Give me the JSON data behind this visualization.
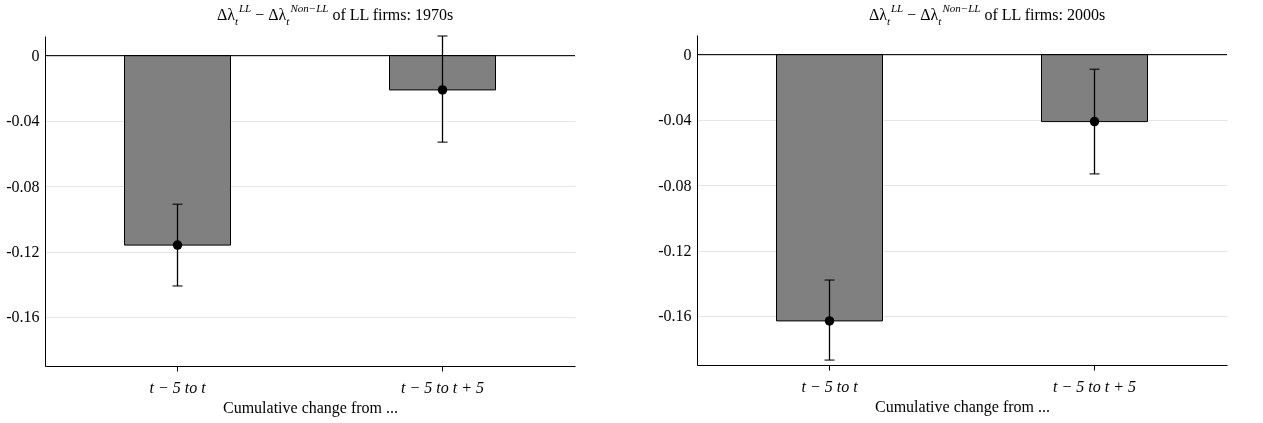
{
  "chart_data": [
    {
      "type": "bar",
      "title": "Δλ$_{t}$$^{LL}$ − Δλ$_{t}$$^{Non−LL}$ of LL firms: 1970s",
      "xlabel": "Cumulative change from ...",
      "categories": [
        "t − 5  to  t",
        "t − 5  to  t + 5"
      ],
      "series": [
        {
          "color": "#808080",
          "values": [
            -0.116,
            -0.021
          ]
        },
        {
          "type": "scatter",
          "color": "#000000",
          "x": [
            "t − 5  to  t",
            "t − 5  to  t + 5"
          ],
          "values": [
            -0.116,
            -0.021
          ],
          "errors": [
            [
              -0.141,
              -0.091
            ],
            [
              -0.053,
              0.012
            ]
          ]
        }
      ],
      "marker": "circle",
      "ylim": [
        -0.19,
        0.012
      ],
      "yticks": [
        -0.16,
        -0.12,
        -0.08,
        -0.04,
        0
      ],
      "grid": "y",
      "ref_lines": [
        {
          "axis": "y",
          "value": 0
        }
      ]
    },
    {
      "type": "bar",
      "title": "Δλ$_{t}$$^{LL}$ − Δλ$_{t}$$^{Non−LL}$ of LL firms: 2000s",
      "xlabel": "Cumulative change from ...",
      "categories": [
        "t − 5  to  t",
        "t − 5  to  t + 5"
      ],
      "series": [
        {
          "color": "#808080",
          "values": [
            -0.163,
            -0.041
          ]
        },
        {
          "type": "scatter",
          "color": "#000000",
          "x": [
            "t − 5  to  t",
            "t − 5  to  t + 5"
          ],
          "values": [
            -0.163,
            -0.041
          ],
          "errors": [
            [
              -0.187,
              -0.138
            ],
            [
              -0.073,
              -0.009
            ]
          ]
        }
      ],
      "marker": "circle",
      "ylim": [
        -0.19,
        0.012
      ],
      "yticks": [
        -0.16,
        -0.12,
        -0.08,
        -0.04,
        0
      ],
      "grid": "y",
      "ref_lines": [
        {
          "axis": "y",
          "value": 0
        }
      ]
    }
  ]
}
